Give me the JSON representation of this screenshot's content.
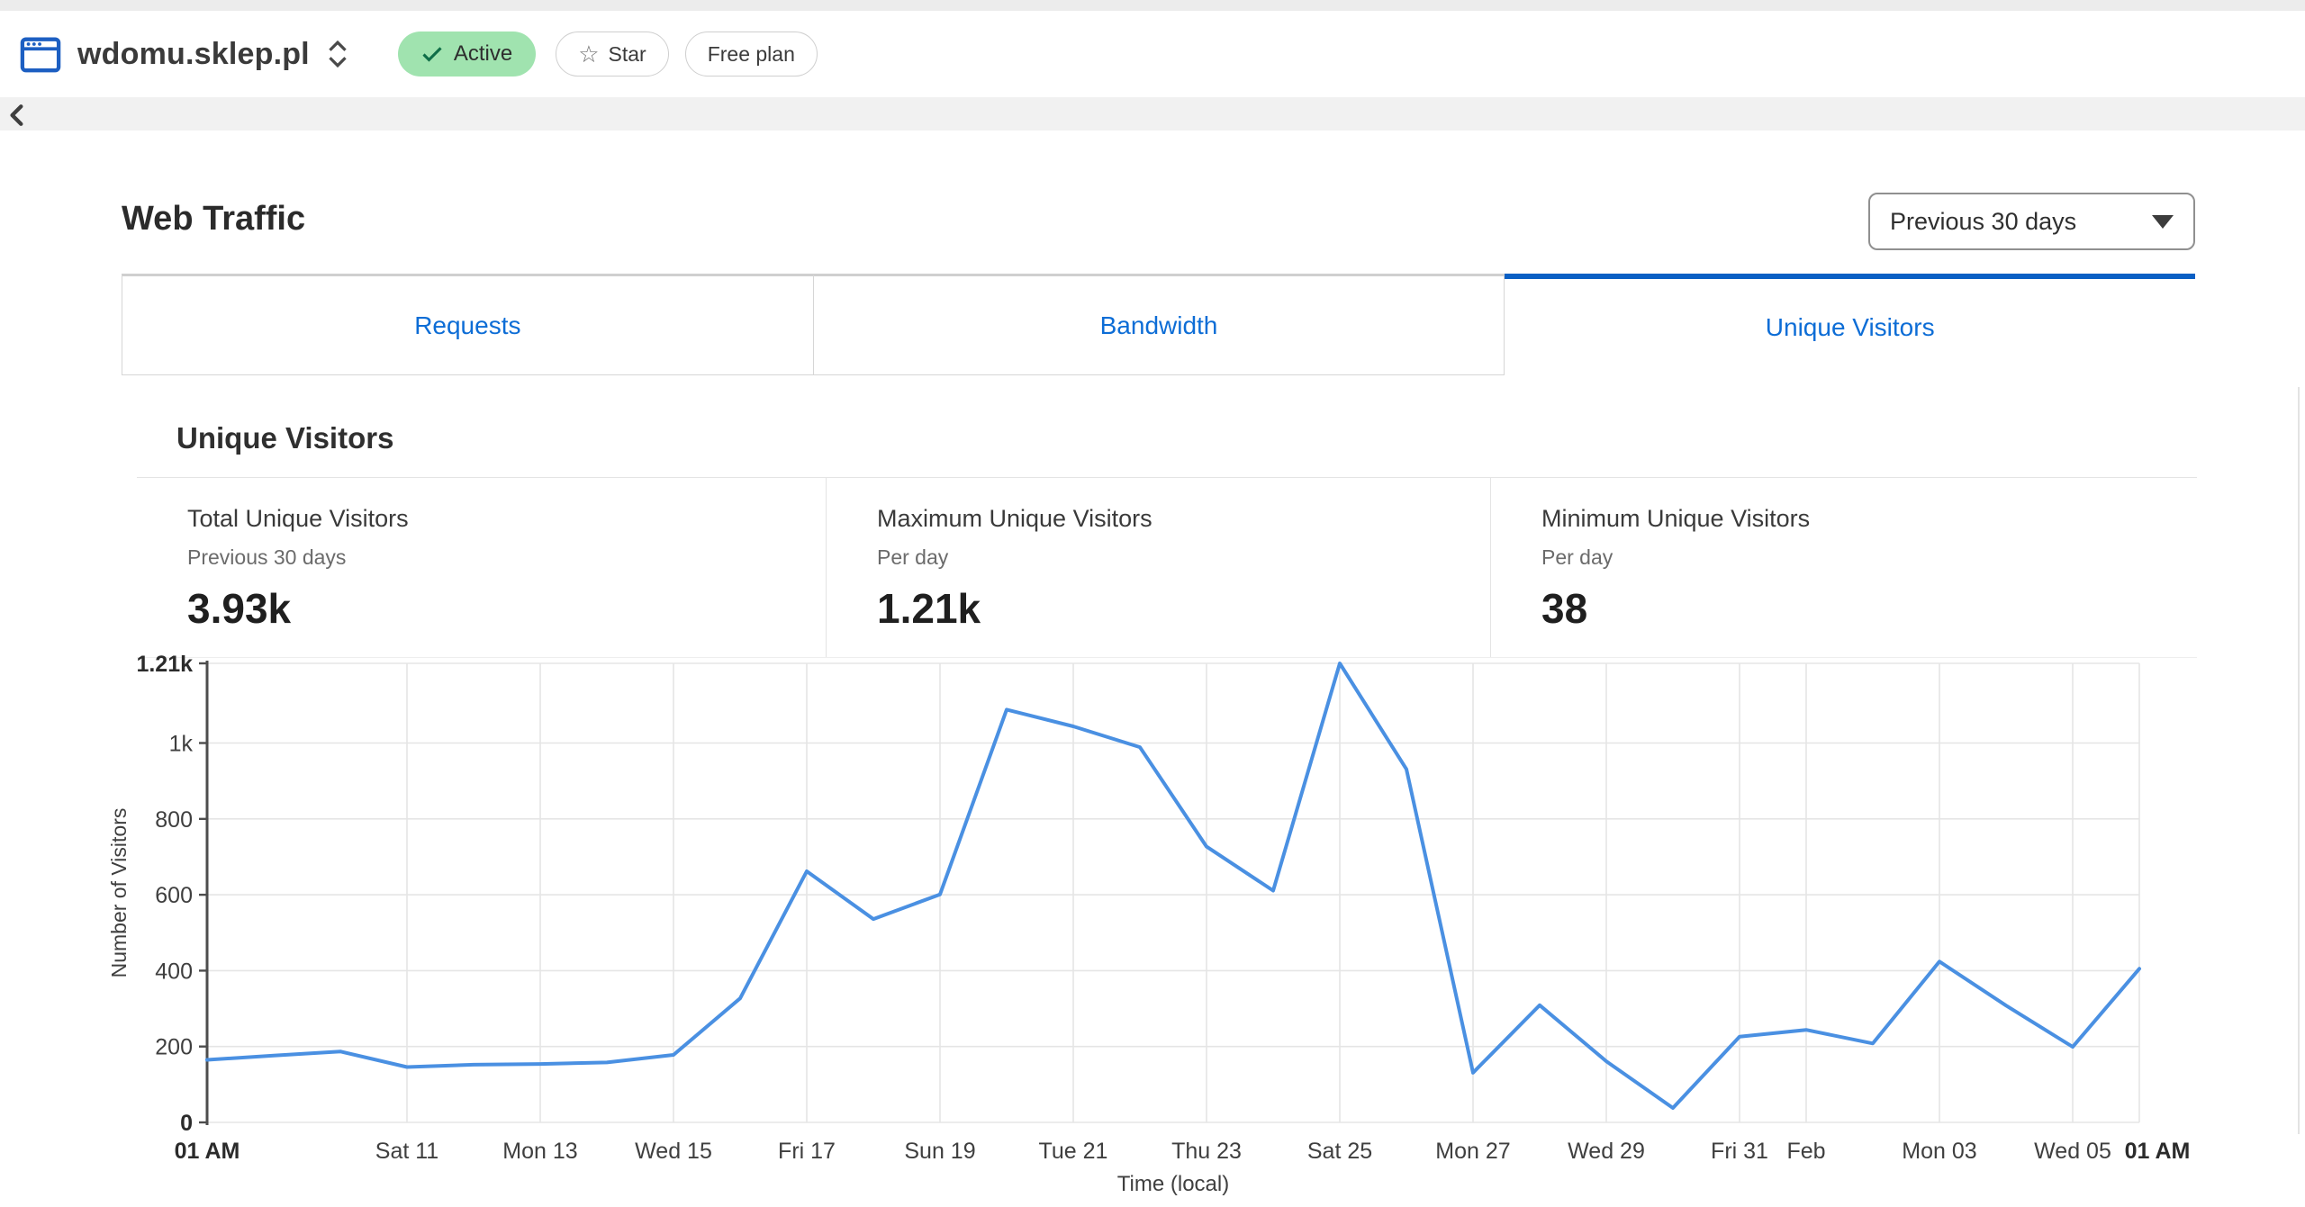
{
  "header": {
    "site_name": "wdomu.sklep.pl",
    "status_badge": "Active",
    "star_button": "Star",
    "plan_badge": "Free plan"
  },
  "page": {
    "title": "Web Traffic",
    "range_selector": "Previous 30 days"
  },
  "tabs": [
    {
      "label": "Requests",
      "active": false
    },
    {
      "label": "Bandwidth",
      "active": false
    },
    {
      "label": "Unique Visitors",
      "active": true
    }
  ],
  "panel": {
    "heading": "Unique Visitors"
  },
  "stats": [
    {
      "label": "Total Unique Visitors",
      "sublabel": "Previous 30 days",
      "value": "3.93k"
    },
    {
      "label": "Maximum Unique Visitors",
      "sublabel": "Per day",
      "value": "1.21k"
    },
    {
      "label": "Minimum Unique Visitors",
      "sublabel": "Per day",
      "value": "38"
    }
  ],
  "icons": {
    "site": "browser-window",
    "expand": "unfold-vertical-chevrons",
    "status_check": "check",
    "star": "star-outline",
    "range_caret": "caret-down",
    "collapse": "chevron-left"
  },
  "colors": {
    "tab_blue": "#0d6dd6",
    "active_tab_border": "#0a5fc4",
    "badge_green": "#a0e3af",
    "icon_blue": "#1d5fc2"
  },
  "chart_data": {
    "type": "line",
    "title": "Unique Visitors",
    "xlabel": "Time (local)",
    "ylabel": "Number of Visitors",
    "ylim": [
      0,
      1210
    ],
    "grid": true,
    "legend": "none",
    "line_color": "#4a90e2",
    "grid_color": "#e5e5e5",
    "axis_color": "#4d4d4d",
    "label_color": "#3f3f3f",
    "series": [
      {
        "name": "Unique Visitors",
        "values": [
          165,
          176,
          187,
          146,
          152,
          154,
          158,
          178,
          327,
          662,
          536,
          601,
          1088,
          1044,
          989,
          727,
          611,
          1210,
          931,
          131,
          309,
          161,
          38,
          226,
          244,
          208,
          424,
          308,
          199,
          405
        ]
      }
    ],
    "y_ticks": [
      {
        "v": 0,
        "label": "0",
        "bold": true
      },
      {
        "v": 200,
        "label": "200",
        "bold": false
      },
      {
        "v": 400,
        "label": "400",
        "bold": false
      },
      {
        "v": 600,
        "label": "600",
        "bold": false
      },
      {
        "v": 800,
        "label": "800",
        "bold": false
      },
      {
        "v": 1000,
        "label": "1k",
        "bold": false
      },
      {
        "v": 1210,
        "label": "1.21k",
        "bold": true
      }
    ],
    "x_ticks": [
      {
        "i": 0,
        "label": "01 AM",
        "bold": true,
        "grid": false
      },
      {
        "i": 3,
        "label": "Sat 11",
        "bold": false,
        "grid": true
      },
      {
        "i": 5,
        "label": "Mon 13",
        "bold": false,
        "grid": true
      },
      {
        "i": 7,
        "label": "Wed 15",
        "bold": false,
        "grid": true
      },
      {
        "i": 9,
        "label": "Fri 17",
        "bold": false,
        "grid": true
      },
      {
        "i": 11,
        "label": "Sun 19",
        "bold": false,
        "grid": true
      },
      {
        "i": 13,
        "label": "Tue 21",
        "bold": false,
        "grid": true
      },
      {
        "i": 15,
        "label": "Thu 23",
        "bold": false,
        "grid": true
      },
      {
        "i": 17,
        "label": "Sat 25",
        "bold": false,
        "grid": true
      },
      {
        "i": 19,
        "label": "Mon 27",
        "bold": false,
        "grid": true
      },
      {
        "i": 21,
        "label": "Wed 29",
        "bold": false,
        "grid": true
      },
      {
        "i": 23,
        "label": "Fri 31",
        "bold": false,
        "grid": true
      },
      {
        "i": 24,
        "label": "Feb",
        "bold": false,
        "grid": true
      },
      {
        "i": 26,
        "label": "Mon 03",
        "bold": false,
        "grid": true
      },
      {
        "i": 28,
        "label": "Wed 05",
        "bold": false,
        "grid": true
      },
      {
        "i": 29,
        "label": "01 AM",
        "bold": true,
        "grid": true
      }
    ]
  }
}
